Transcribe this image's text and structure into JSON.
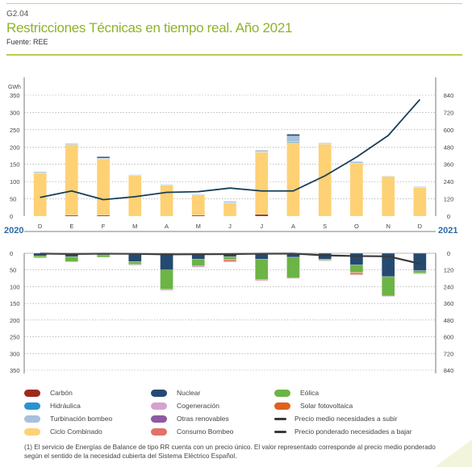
{
  "header": {
    "code": "G2.04",
    "title": "Restricciones Técnicas en tiempo real. Año 2021",
    "source": "Fuente: REE"
  },
  "chart_data": {
    "type": "bar",
    "categories": [
      "D",
      "E",
      "F",
      "M",
      "A",
      "M",
      "J",
      "J",
      "A",
      "S",
      "O",
      "N",
      "D"
    ],
    "year_start": "2020",
    "year_end": "2021",
    "left_axis_unit": "GWh",
    "upper_left_ticks": [
      "350",
      "300",
      "250",
      "200",
      "150",
      "100",
      "50",
      "0"
    ],
    "upper_right_ticks": [
      "840",
      "720",
      "600",
      "480",
      "360",
      "240",
      "120",
      "0"
    ],
    "lower_left_ticks": [
      "0",
      "50",
      "100",
      "150",
      "200",
      "250",
      "300",
      "350"
    ],
    "lower_right_ticks": [
      "0",
      "120",
      "240",
      "360",
      "480",
      "600",
      "720",
      "840"
    ],
    "upper_ylim": [
      0,
      350
    ],
    "upper_right_ylim": [
      0,
      840
    ],
    "lower_ylim": [
      0,
      350
    ],
    "stacked": true,
    "series": [
      {
        "name": "Carbón",
        "color": "#9e2a1e",
        "panel": "subir",
        "values": [
          0,
          3,
          3,
          0,
          0,
          3,
          0,
          5,
          0,
          0,
          0,
          0,
          0
        ]
      },
      {
        "name": "Ciclo Combinado",
        "color": "#fdd174",
        "panel": "subir",
        "values": [
          125,
          204,
          162,
          117,
          89,
          58,
          38,
          180,
          213,
          208,
          152,
          115,
          83
        ]
      },
      {
        "name": "Hidráulica",
        "color": "#2b93cf",
        "panel": "subir",
        "values": [
          1,
          1,
          1,
          1,
          1,
          1,
          1,
          1,
          2,
          1,
          1,
          1,
          1
        ]
      },
      {
        "name": "Turbinación bombeo",
        "color": "#a7c0dc",
        "panel": "subir",
        "values": [
          3,
          3,
          2,
          2,
          2,
          2,
          4,
          5,
          17,
          3,
          5,
          1,
          2
        ]
      },
      {
        "name": "Nuclear",
        "color": "#254a72",
        "panel": "subir",
        "values": [
          0,
          0,
          4,
          0,
          0,
          0,
          0,
          0,
          5,
          0,
          0,
          0,
          0
        ]
      },
      {
        "name": "Nuclear",
        "color": "#254a72",
        "panel": "bajar",
        "values": [
          8,
          10,
          5,
          25,
          50,
          18,
          10,
          18,
          12,
          18,
          35,
          70,
          52
        ]
      },
      {
        "name": "Eólica",
        "color": "#6cb445",
        "panel": "bajar",
        "values": [
          5,
          15,
          7,
          8,
          58,
          20,
          8,
          60,
          62,
          3,
          22,
          58,
          8
        ]
      },
      {
        "name": "Solar fotovoltaica",
        "color": "#e0601c",
        "panel": "bajar",
        "values": [
          0,
          0,
          0,
          0,
          0,
          0,
          3,
          0,
          0,
          0,
          3,
          0,
          0
        ]
      },
      {
        "name": "Consumo Bombeo",
        "color": "#e2726a",
        "panel": "bajar",
        "values": [
          0,
          0,
          0,
          0,
          0,
          0,
          4,
          3,
          0,
          0,
          4,
          0,
          0
        ]
      },
      {
        "name": "Cogeneración",
        "color": "#d6a2cf",
        "panel": "bajar",
        "values": [
          2,
          2,
          1,
          3,
          3,
          4,
          2,
          2,
          2,
          2,
          2,
          2,
          2
        ]
      }
    ],
    "lines": [
      {
        "name": "Precio medio necesidades a subir",
        "color": "#173f56",
        "panel": "subir",
        "values": [
          130,
          175,
          115,
          135,
          165,
          170,
          195,
          175,
          175,
          280,
          410,
          560,
          810
        ]
      },
      {
        "name": "Precio ponderado necesidades a bajar",
        "color": "#3a3a3a",
        "panel": "bajar",
        "values": [
          2,
          5,
          3,
          4,
          8,
          7,
          6,
          3,
          2,
          15,
          20,
          22,
          75
        ]
      }
    ]
  },
  "legend": [
    {
      "label": "Carbón",
      "kind": "dot",
      "color": "#9e2a1e"
    },
    {
      "label": "Nuclear",
      "kind": "dot",
      "color": "#254a72"
    },
    {
      "label": "Eólica",
      "kind": "dot",
      "color": "#6cb445"
    },
    {
      "label": "Hidráulica",
      "kind": "dot",
      "color": "#2b93cf"
    },
    {
      "label": "Cogeneración",
      "kind": "dot",
      "color": "#d6a2cf"
    },
    {
      "label": "Solar fotovoltaica",
      "kind": "dot",
      "color": "#e0601c"
    },
    {
      "label": "Turbinación bombeo",
      "kind": "dot",
      "color": "#a7c0dc"
    },
    {
      "label": "Otras renovables",
      "kind": "dot",
      "color": "#8e5aa4"
    },
    {
      "label": "Precio medio necesidades a subir",
      "kind": "line",
      "color": "#3a3a3a"
    },
    {
      "label": "Ciclo Combinado",
      "kind": "dot",
      "color": "#fdd174"
    },
    {
      "label": "Consumo Bombeo",
      "kind": "dot",
      "color": "#e2726a"
    },
    {
      "label": "Precio ponderado necesidades a bajar",
      "kind": "line",
      "color": "#3a3a3a"
    }
  ],
  "footnote": "(1) El servicio de Energías de Balance de tipo RR cuenta con un precio único. El valor representado corresponde al precio medio ponderado según el sentido de la necesidad cubierta del Sistema Eléctrico Español."
}
